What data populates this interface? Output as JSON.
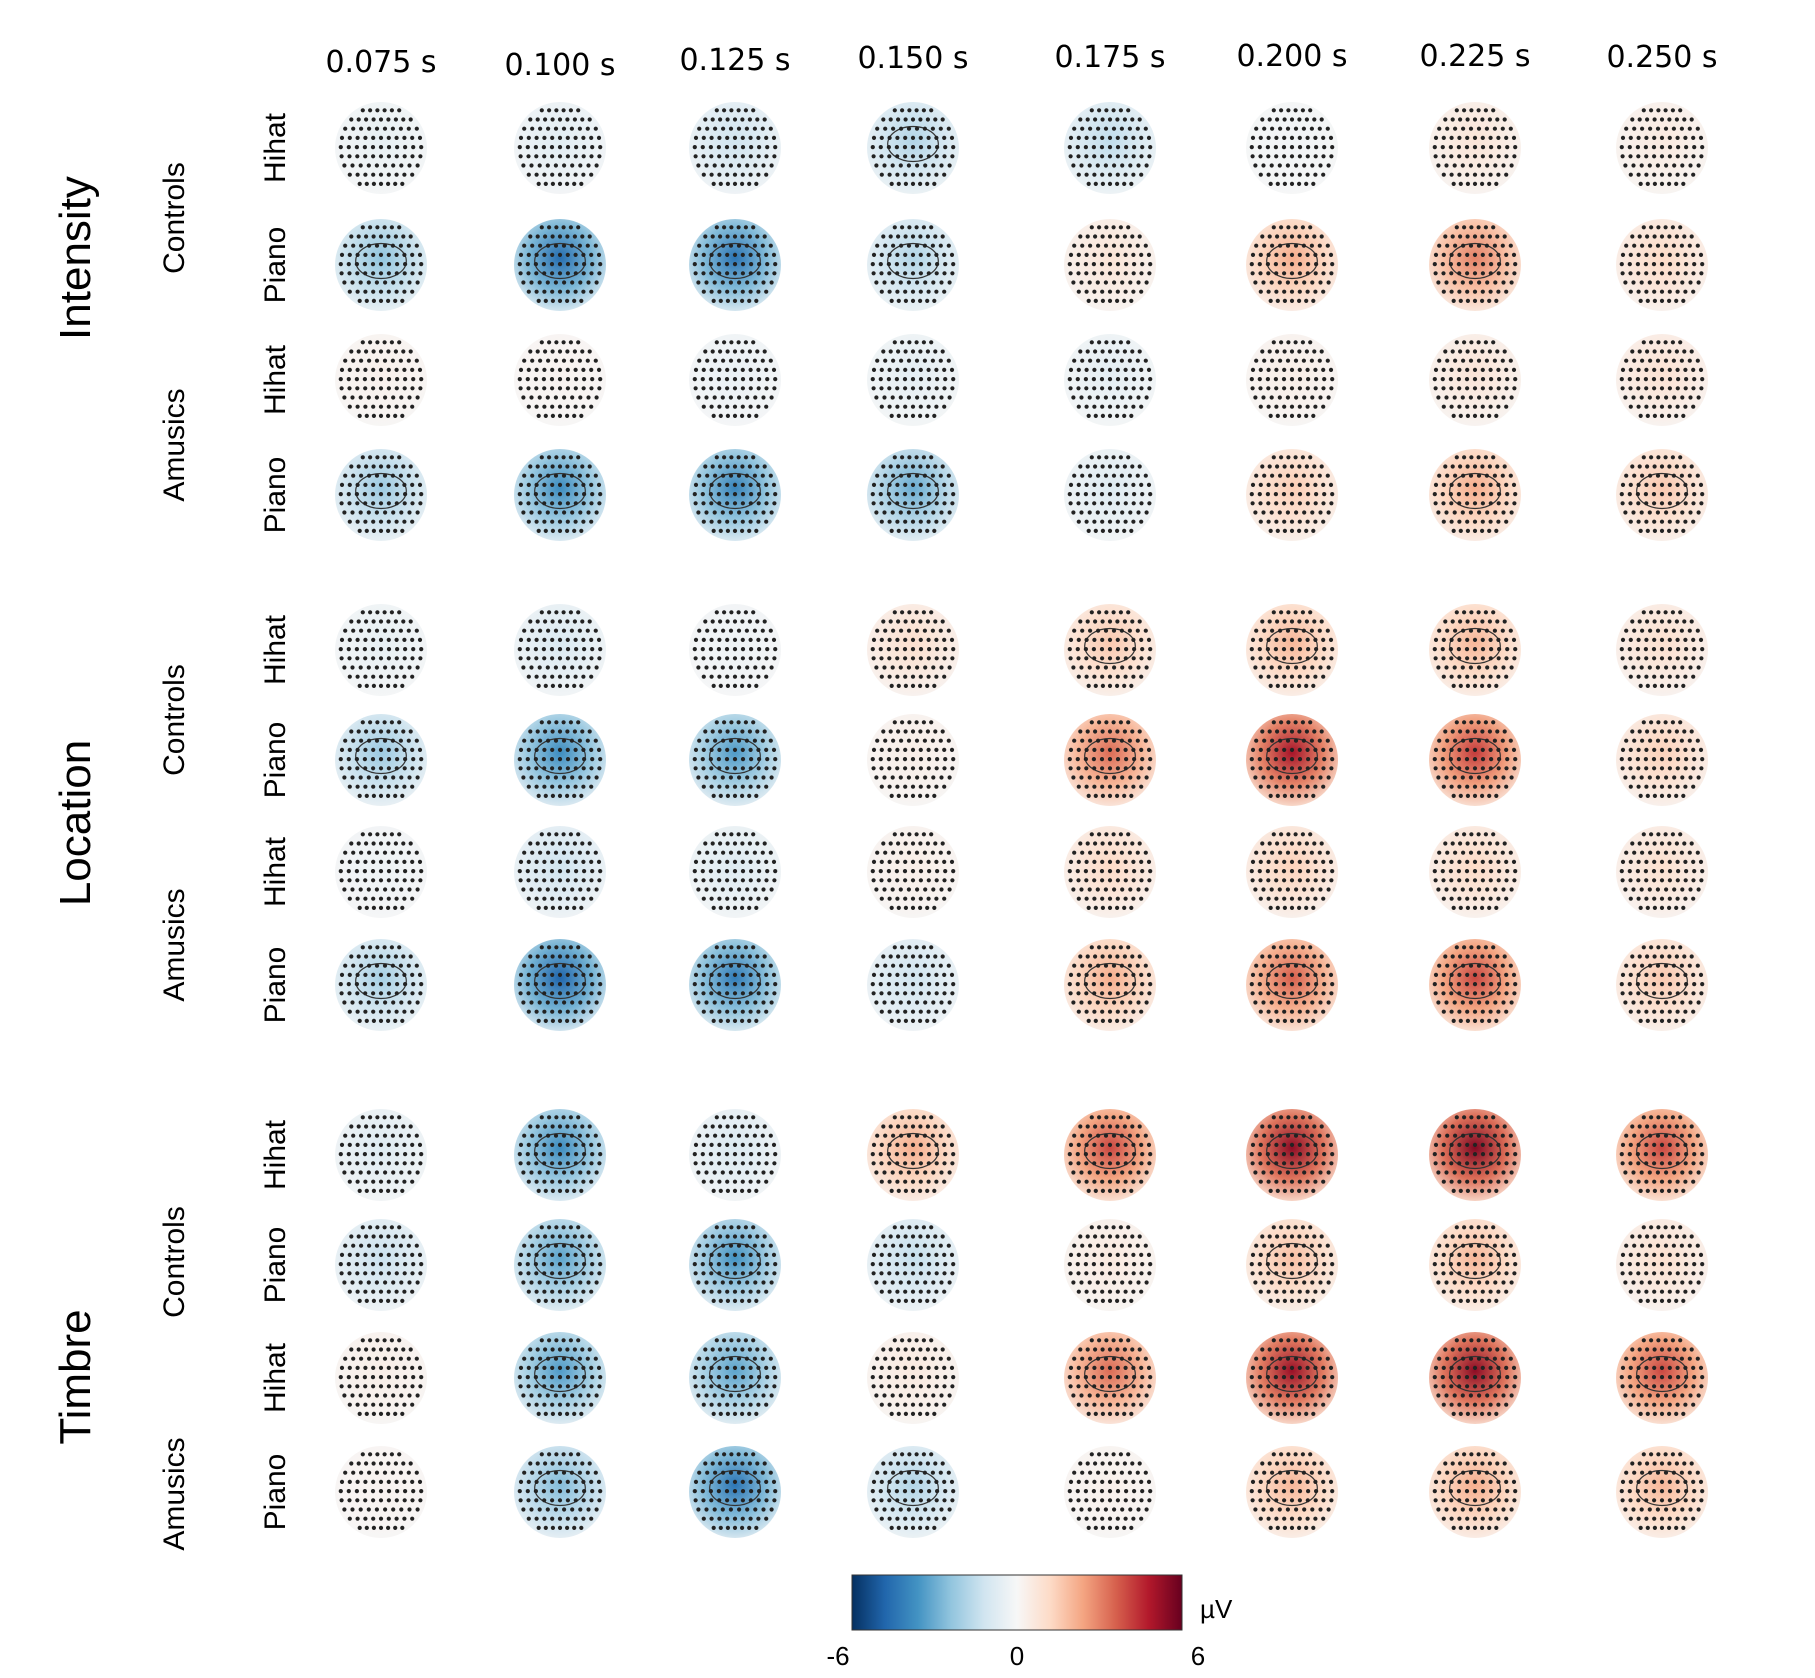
{
  "times": [
    "0.075 s",
    "0.100 s",
    "0.125 s",
    "0.150 s",
    "0.175 s",
    "0.200 s",
    "0.225 s",
    "0.250 s"
  ],
  "conditions": [
    {
      "name": "Intensity",
      "groups": [
        {
          "name": "Controls",
          "rows": [
            {
              "stim": "Hihat",
              "values": [
                -0.5,
                -0.7,
                -1.2,
                -1.8,
                -1.5,
                -0.2,
                0.8,
                0.6
              ]
            },
            {
              "stim": "Piano",
              "values": [
                -2.4,
                -4.6,
                -4.4,
                -1.8,
                0.8,
                2.2,
                3.0,
                1.2
              ]
            }
          ]
        },
        {
          "name": "Amusics",
          "rows": [
            {
              "stim": "Hihat",
              "values": [
                0.3,
                0.2,
                -0.4,
                -0.6,
                -0.6,
                0.4,
                0.8,
                0.9
              ]
            },
            {
              "stim": "Piano",
              "values": [
                -2.2,
                -3.8,
                -4.0,
                -3.0,
                -0.8,
                1.5,
                2.2,
                1.6
              ]
            }
          ]
        }
      ]
    },
    {
      "name": "Location",
      "groups": [
        {
          "name": "Controls",
          "rows": [
            {
              "stim": "Hihat",
              "values": [
                -0.5,
                -0.9,
                -0.3,
                1.0,
                1.6,
                2.0,
                2.0,
                1.0
              ]
            },
            {
              "stim": "Piano",
              "values": [
                -2.2,
                -3.8,
                -3.4,
                0.4,
                3.4,
                5.0,
                4.2,
                1.4
              ]
            }
          ]
        },
        {
          "name": "Amusics",
          "rows": [
            {
              "stim": "Hihat",
              "values": [
                -0.3,
                -1.2,
                -0.8,
                0.4,
                1.2,
                1.4,
                1.2,
                1.0
              ]
            },
            {
              "stim": "Piano",
              "values": [
                -2.0,
                -4.8,
                -4.2,
                -1.2,
                2.2,
                3.6,
                4.0,
                1.6
              ]
            }
          ]
        }
      ]
    },
    {
      "name": "Timbre",
      "groups": [
        {
          "name": "Controls",
          "rows": [
            {
              "stim": "Hihat",
              "values": [
                -0.8,
                -3.8,
                -0.9,
                2.2,
                4.0,
                5.4,
                5.6,
                4.0
              ]
            },
            {
              "stim": "Piano",
              "values": [
                -1.3,
                -3.2,
                -3.6,
                -1.4,
                0.6,
                1.8,
                2.0,
                1.0
              ]
            }
          ]
        },
        {
          "name": "Amusics",
          "rows": [
            {
              "stim": "Hihat",
              "values": [
                0.4,
                -3.4,
                -3.2,
                0.6,
                3.4,
                5.2,
                5.4,
                4.0
              ]
            },
            {
              "stim": "Piano",
              "values": [
                0.2,
                -2.6,
                -4.4,
                -1.8,
                0.3,
                2.0,
                2.2,
                2.0
              ]
            }
          ]
        }
      ]
    }
  ],
  "colorbar": {
    "min": -6,
    "max": 6,
    "tick_labels": [
      "-6",
      "0",
      "6"
    ],
    "unit": "µV",
    "colors": [
      "#053061",
      "#2166ac",
      "#4393c3",
      "#92c5de",
      "#d1e5f0",
      "#f7f7f7",
      "#fddbc7",
      "#f4a582",
      "#d6604d",
      "#b2182b",
      "#67001f"
    ]
  }
}
